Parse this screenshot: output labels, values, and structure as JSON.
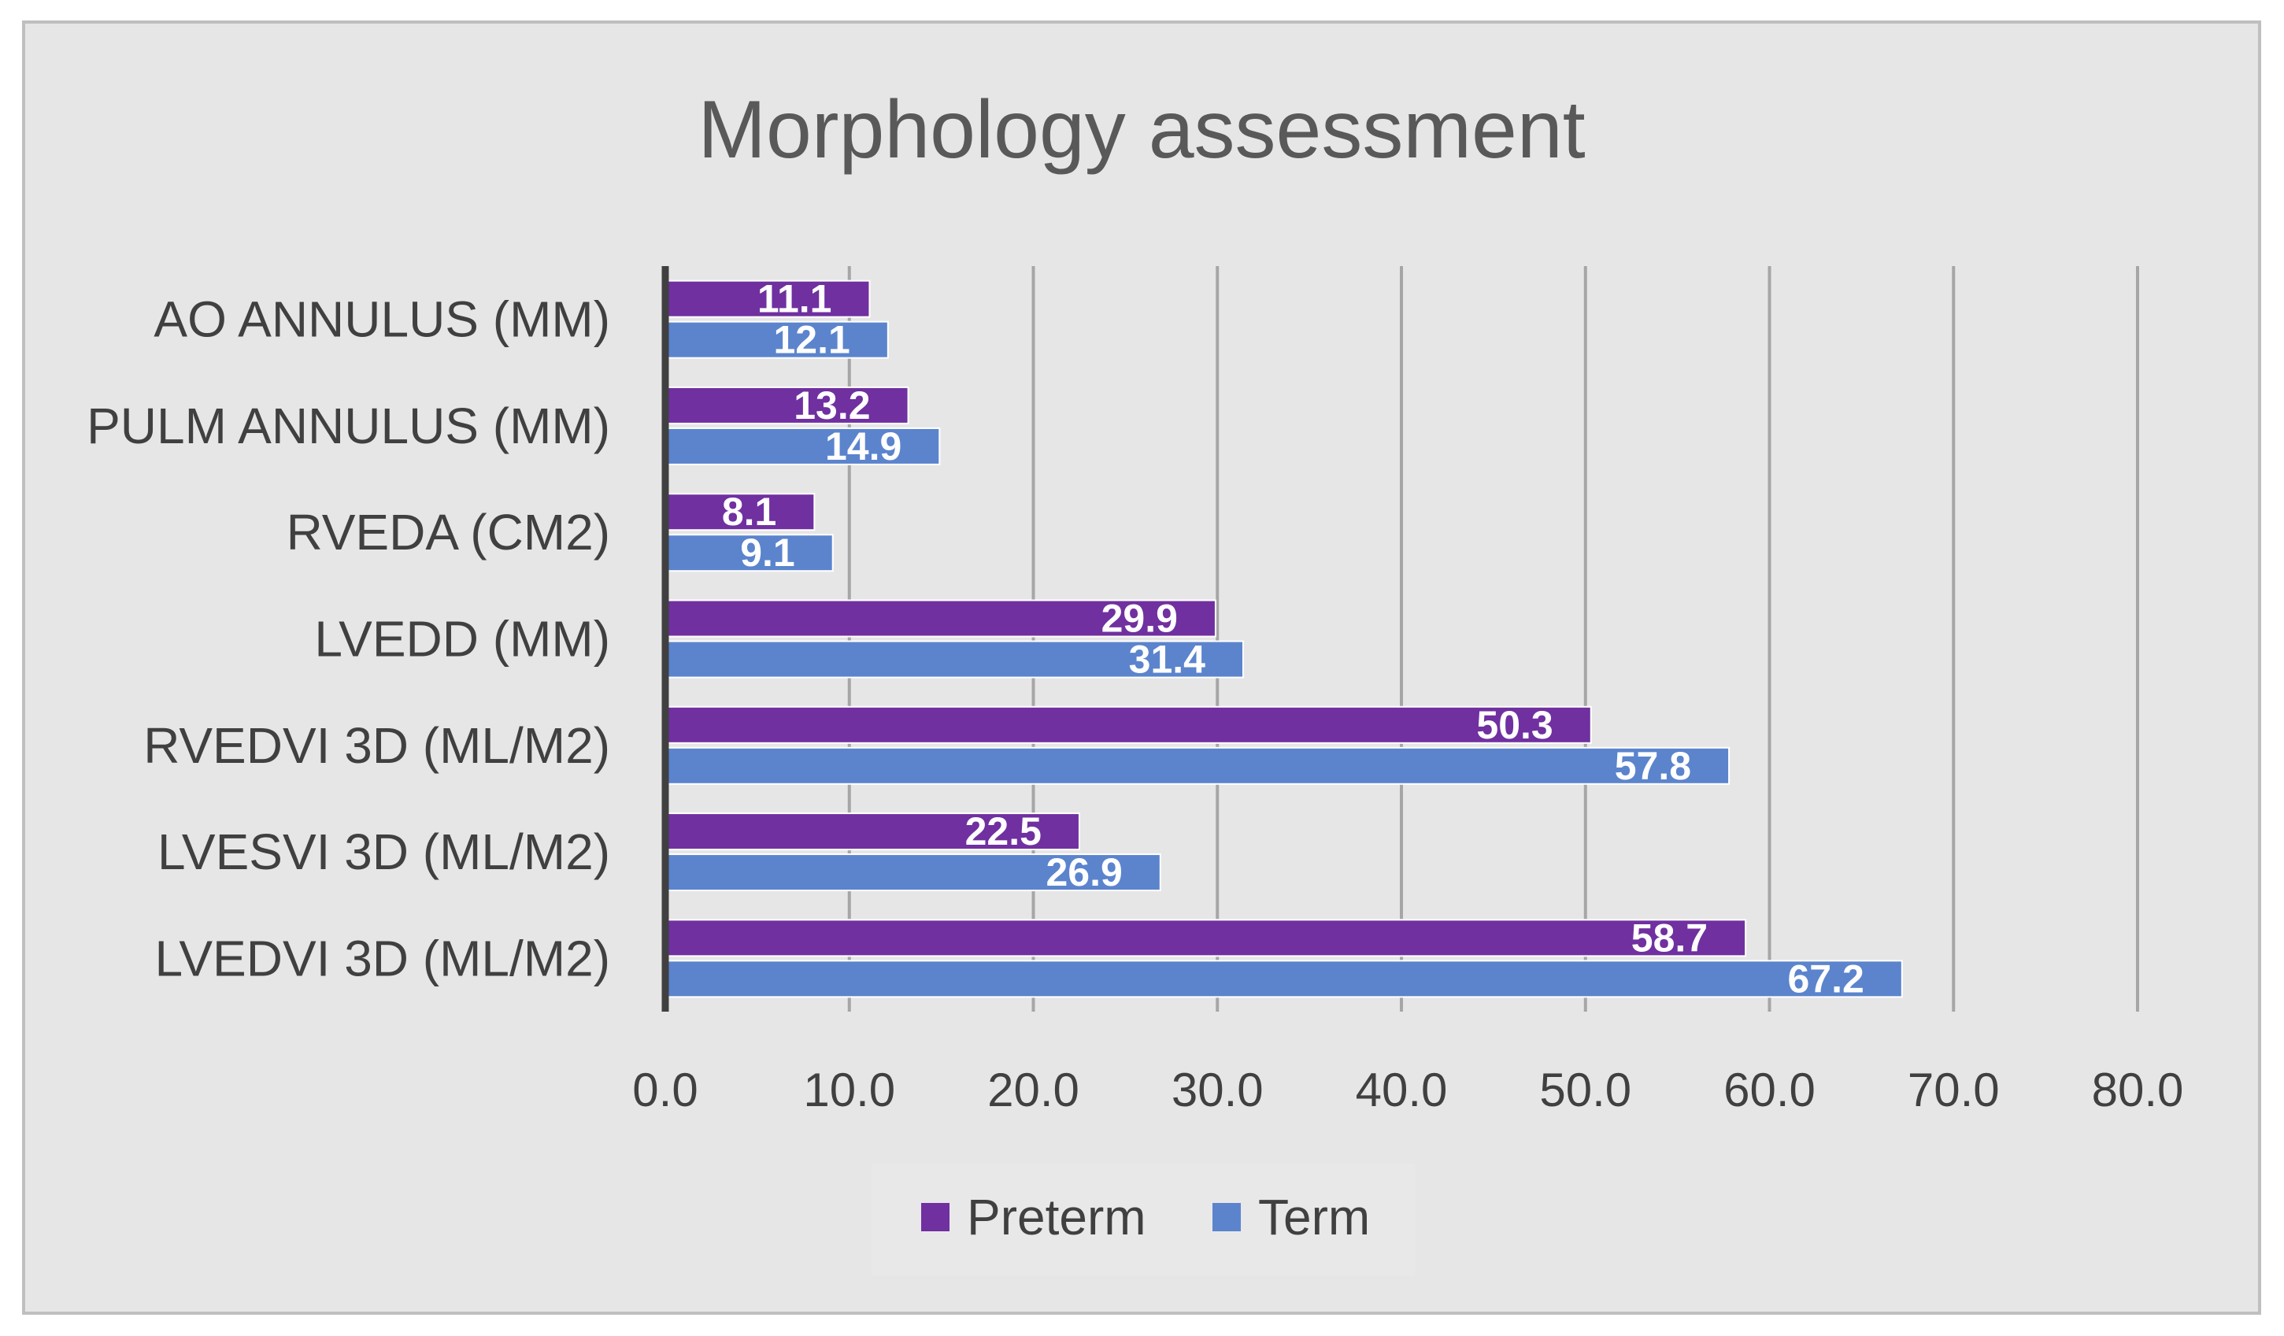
{
  "chart_data": {
    "type": "bar",
    "orientation": "horizontal",
    "title": "Morphology assessment",
    "categories": [
      "AO ANNULUS (MM)",
      "PULM ANNULUS (MM)",
      "RVEDA (CM2)",
      "LVEDD (MM)",
      "RVEDVI 3D (ML/M2)",
      "LVESVI 3D (ML/M2)",
      "LVEDVI 3D (ML/M2)"
    ],
    "series": [
      {
        "name": "Preterm",
        "color": "#7030A0",
        "values": [
          11.1,
          13.2,
          8.1,
          29.9,
          50.3,
          22.5,
          58.7
        ],
        "labels": [
          "11.1",
          "13.2",
          "8.1",
          "29.9",
          "50.3",
          "22.5",
          "58.7"
        ]
      },
      {
        "name": "Term",
        "color": "#5B84CD",
        "values": [
          12.1,
          14.9,
          9.1,
          31.4,
          57.8,
          26.9,
          67.2
        ],
        "labels": [
          "12.1",
          "14.9",
          "9.1",
          "31.4",
          "57.8",
          "26.9",
          "67.2"
        ]
      }
    ],
    "xlim": [
      0,
      80
    ],
    "xticks": [
      0,
      10,
      20,
      30,
      40,
      50,
      60,
      70,
      80
    ],
    "xtick_labels": [
      "0.0",
      "10.0",
      "20.0",
      "30.0",
      "40.0",
      "50.0",
      "60.0",
      "70.0",
      "80.0"
    ],
    "xlabel": "",
    "ylabel": "",
    "grid": true,
    "legend_position": "bottom",
    "colors": {
      "background": "#E7E6E6",
      "border": "#BFBFBF",
      "gridline": "#A6A6A6",
      "axis": "#404040"
    }
  }
}
